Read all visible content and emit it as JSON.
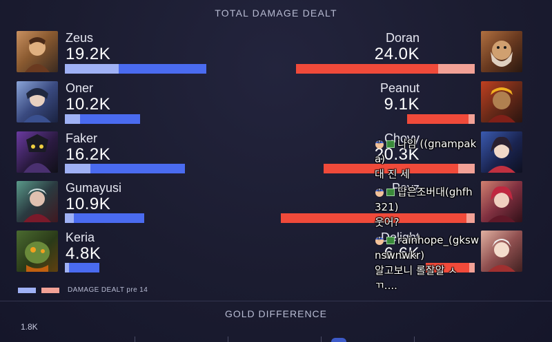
{
  "title": "TOTAL DAMAGE DEALT",
  "colors": {
    "blue_main": "#4a6bf0",
    "blue_pre": "#9fb1f5",
    "red_main": "#f04a3a",
    "red_pre": "#f2a196"
  },
  "left_team": [
    {
      "name": "Zeus",
      "value": "19.2K",
      "portrait_icon": "zeus-portrait"
    },
    {
      "name": "Oner",
      "value": "10.2K",
      "portrait_icon": "oner-portrait"
    },
    {
      "name": "Faker",
      "value": "16.2K",
      "portrait_icon": "faker-portrait"
    },
    {
      "name": "Gumayusi",
      "value": "10.9K",
      "portrait_icon": "gumayusi-portrait"
    },
    {
      "name": "Keria",
      "value": "4.8K",
      "portrait_icon": "keria-portrait"
    }
  ],
  "right_team": [
    {
      "name": "Doran",
      "value": "24.0K",
      "portrait_icon": "doran-portrait"
    },
    {
      "name": "Peanut",
      "value": "9.1K",
      "portrait_icon": "peanut-portrait"
    },
    {
      "name": "Chovy",
      "value": "20.3K",
      "portrait_icon": "chovy-portrait"
    },
    {
      "name": "Peyz",
      "value": "",
      "portrait_icon": "peyz-portrait"
    },
    {
      "name": "Delight",
      "value": "6.6K",
      "portrait_icon": "delight-portrait"
    }
  ],
  "legend": {
    "label": "DAMAGE DEALT pre 14"
  },
  "gold": {
    "title": "GOLD DIFFERENCE",
    "axis_label": "1.8K"
  },
  "chat": [
    {
      "user": "나임 ((gnampak",
      "user2": "a)",
      "text": "대 진 세"
    },
    {
      "user": "답은조버대(ghfh",
      "user2": "321)",
      "text": "웃어?"
    },
    {
      "user": "rainhope_(gksw",
      "user2": "nswnwkr)",
      "text": "알고보니 롤잘알 ㅅ",
      "text2": "ㄲ...."
    }
  ]
}
